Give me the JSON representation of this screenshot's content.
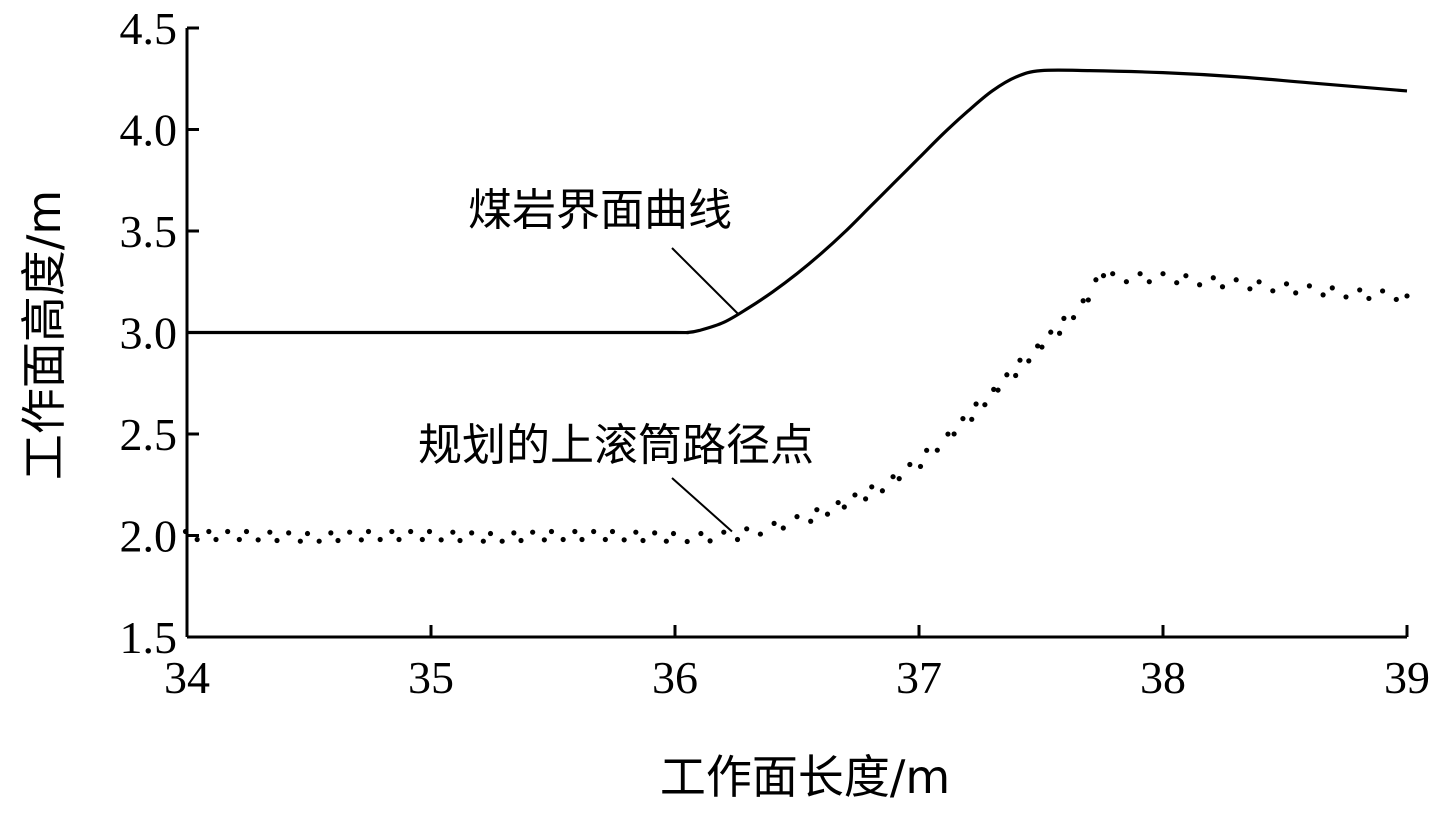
{
  "chart_data": {
    "type": "line",
    "xlabel": "工作面长度/m",
    "ylabel": "工作面高度/m",
    "xlim": [
      34,
      39
    ],
    "ylim": [
      1.5,
      4.5
    ],
    "x_ticks": [
      34,
      35,
      36,
      37,
      38,
      39
    ],
    "x_tick_labels": [
      "34",
      "35",
      "36",
      "37",
      "38",
      "39"
    ],
    "y_ticks": [
      1.5,
      2.0,
      2.5,
      3.0,
      3.5,
      4.0,
      4.5
    ],
    "y_tick_labels": [
      "1.5",
      "2.0",
      "2.5",
      "3.0",
      "3.5",
      "4.0",
      "4.5"
    ],
    "grid": false,
    "legend": "none",
    "colors": {
      "line": "#000000",
      "points": "#000000",
      "axis": "#000000"
    },
    "series": [
      {
        "name": "煤岩界面曲线",
        "style": "solid-line",
        "x": [
          34.0,
          34.5,
          35.0,
          35.5,
          36.0,
          36.05,
          36.1,
          36.2,
          36.3,
          36.4,
          36.5,
          36.6,
          36.7,
          36.8,
          36.9,
          37.0,
          37.1,
          37.2,
          37.3,
          37.4,
          37.5,
          37.7,
          38.0,
          38.3,
          38.6,
          39.0
        ],
        "y": [
          3.0,
          3.0,
          3.0,
          3.0,
          3.0,
          3.0,
          3.01,
          3.05,
          3.12,
          3.2,
          3.29,
          3.39,
          3.5,
          3.62,
          3.74,
          3.86,
          3.98,
          4.09,
          4.19,
          4.26,
          4.29,
          4.29,
          4.28,
          4.26,
          4.23,
          4.19
        ]
      },
      {
        "name": "规划的上滚筒路径点",
        "style": "dotted",
        "x": [
          34.0,
          34.25,
          34.5,
          34.75,
          35.0,
          35.25,
          35.5,
          35.75,
          36.0,
          36.1,
          36.25,
          36.4,
          36.55,
          36.7,
          36.85,
          37.0,
          37.15,
          37.3,
          37.45,
          37.6,
          37.7,
          37.75,
          37.8,
          38.0,
          38.2,
          38.4,
          38.6,
          38.8,
          39.0
        ],
        "y": [
          2.0,
          2.0,
          1.99,
          2.0,
          2.0,
          1.99,
          2.0,
          2.0,
          1.99,
          1.99,
          2.0,
          2.04,
          2.09,
          2.16,
          2.24,
          2.36,
          2.52,
          2.7,
          2.88,
          3.05,
          3.18,
          3.3,
          3.27,
          3.27,
          3.25,
          3.23,
          3.21,
          3.19,
          3.18
        ]
      }
    ],
    "annotations": [
      {
        "text": "煤岩界面曲线",
        "target_x": 36.26,
        "target_y": 3.09
      },
      {
        "text": "规划的上滚筒路径点",
        "target_x": 36.25,
        "target_y": 2.0
      }
    ]
  }
}
